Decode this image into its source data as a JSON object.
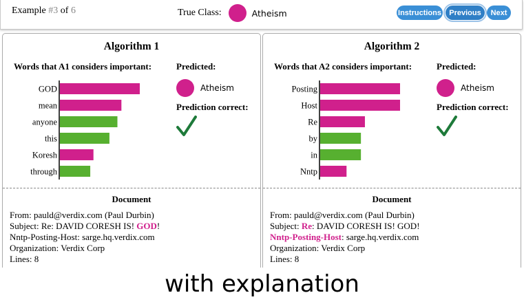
{
  "header": {
    "example_prefix": "Example ",
    "example_current": "#3",
    "example_of": " of ",
    "example_total": "6",
    "true_class_label": "True Class:",
    "true_class_value": "Atheism",
    "buttons": {
      "instructions": "Instructions",
      "previous": "Previous",
      "next": "Next"
    }
  },
  "colors": {
    "atheism": "#d0208c",
    "other": "#57b030",
    "button": "#3a8fd6",
    "check": "#1e7a3a"
  },
  "panels": [
    {
      "title": "Algorithm 1",
      "words_heading": "Words that A1 considers important:",
      "predicted_label": "Predicted:",
      "predicted_class": "Atheism",
      "correct_label": "Prediction correct:",
      "prediction_correct": true,
      "chart_data": {
        "type": "bar",
        "orientation": "horizontal",
        "categories": [
          "GOD",
          "mean",
          "anyone",
          "this",
          "Koresh",
          "through"
        ],
        "values": [
          1.0,
          0.77,
          0.72,
          0.62,
          0.42,
          0.38
        ],
        "colors": [
          "#d0208c",
          "#d0208c",
          "#57b030",
          "#57b030",
          "#d0208c",
          "#57b030"
        ]
      },
      "document_heading": "Document",
      "document": {
        "from": "From: pauld@verdix.com (Paul Durbin)",
        "subject_prefix": "Subject: Re: DAVID CORESH IS! ",
        "subject_hl": "GOD",
        "subject_suffix": "!",
        "nntp_label": "Nntp-Posting-Host:",
        "nntp_value": " sarge.hq.verdix.com",
        "organization": "Organization: Verdix Corp",
        "lines": "Lines: 8"
      }
    },
    {
      "title": "Algorithm 2",
      "words_heading": "Words that A2 considers important:",
      "predicted_label": "Predicted:",
      "predicted_class": "Atheism",
      "correct_label": "Prediction correct:",
      "prediction_correct": true,
      "chart_data": {
        "type": "bar",
        "orientation": "horizontal",
        "categories": [
          "Posting",
          "Host",
          "Re",
          "by",
          "in",
          "Nntp"
        ],
        "values": [
          1.0,
          1.0,
          0.56,
          0.51,
          0.51,
          0.33
        ],
        "colors": [
          "#d0208c",
          "#d0208c",
          "#d0208c",
          "#57b030",
          "#57b030",
          "#d0208c"
        ]
      },
      "document_heading": "Document",
      "document": {
        "from": "From: pauld@verdix.com (Paul Durbin)",
        "subject_label": "Subject: ",
        "subject_hl": "Re",
        "subject_rest": ": DAVID CORESH IS! GOD!",
        "nntp_hl": "Nntp-Posting-Host",
        "nntp_value": ": sarge.hq.verdix.com",
        "organization": "Organization: Verdix Corp",
        "lines": "Lines: 8"
      }
    }
  ],
  "caption": "with explanation"
}
